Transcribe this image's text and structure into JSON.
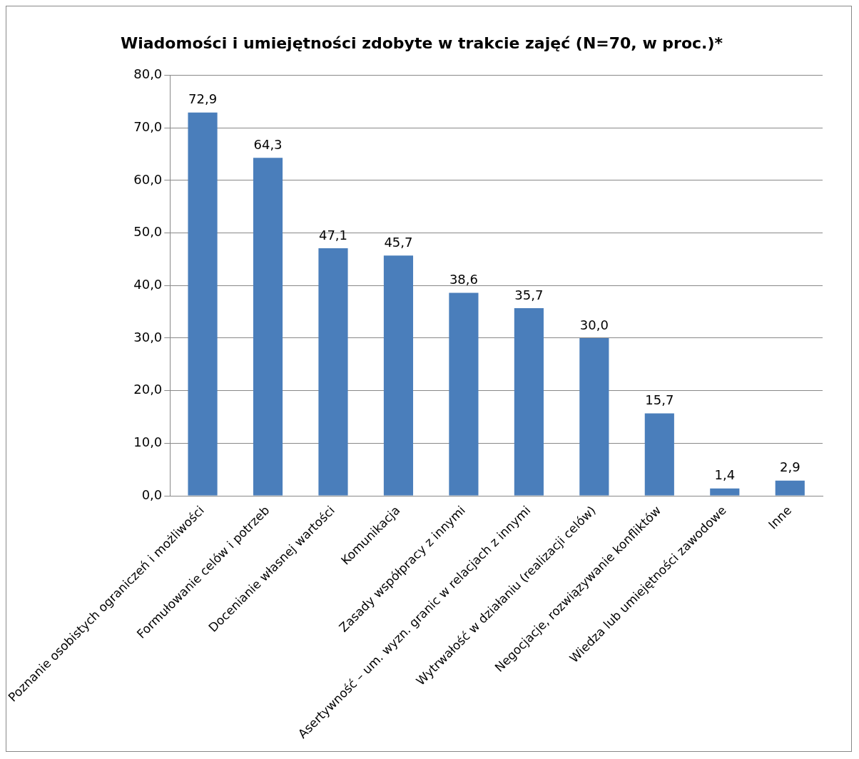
{
  "chart_data": {
    "type": "bar",
    "title": "Wiadomości i umiejętności zdobyte w trakcie zajęć (N=70, w proc.)*",
    "categories": [
      "Poznanie osobistych ograniczeń i możliwości",
      "Formułowanie celów i potrzeb",
      "Docenianie własnej wartości",
      "Komunikacja",
      "Zasady współpracy z innymi",
      "Asertywność – um. wyzn. granic w relacjach z innymi",
      "Wytrwałość w działaniu (realizacji celów)",
      "Negocjacje, rozwiązywanie konfliktów",
      "Wiedza lub umiejętności zawodowe",
      "Inne"
    ],
    "values": [
      72.9,
      64.3,
      47.1,
      45.7,
      38.6,
      35.7,
      30.0,
      15.7,
      1.4,
      2.9
    ],
    "value_labels": [
      "72,9",
      "64,3",
      "47,1",
      "45,7",
      "38,6",
      "35,7",
      "30,0",
      "15,7",
      "1,4",
      "2,9"
    ],
    "color": "#4a7ebb",
    "ylim": [
      0,
      80
    ],
    "yticks": [
      {
        "value": 0,
        "label": "0,0"
      },
      {
        "value": 10,
        "label": "10,0"
      },
      {
        "value": 20,
        "label": "20,0"
      },
      {
        "value": 30,
        "label": "30,0"
      },
      {
        "value": 40,
        "label": "40,0"
      },
      {
        "value": 50,
        "label": "50,0"
      },
      {
        "value": 60,
        "label": "60,0"
      },
      {
        "value": 70,
        "label": "70,0"
      },
      {
        "value": 80,
        "label": "80,0"
      }
    ],
    "grid": "y"
  }
}
